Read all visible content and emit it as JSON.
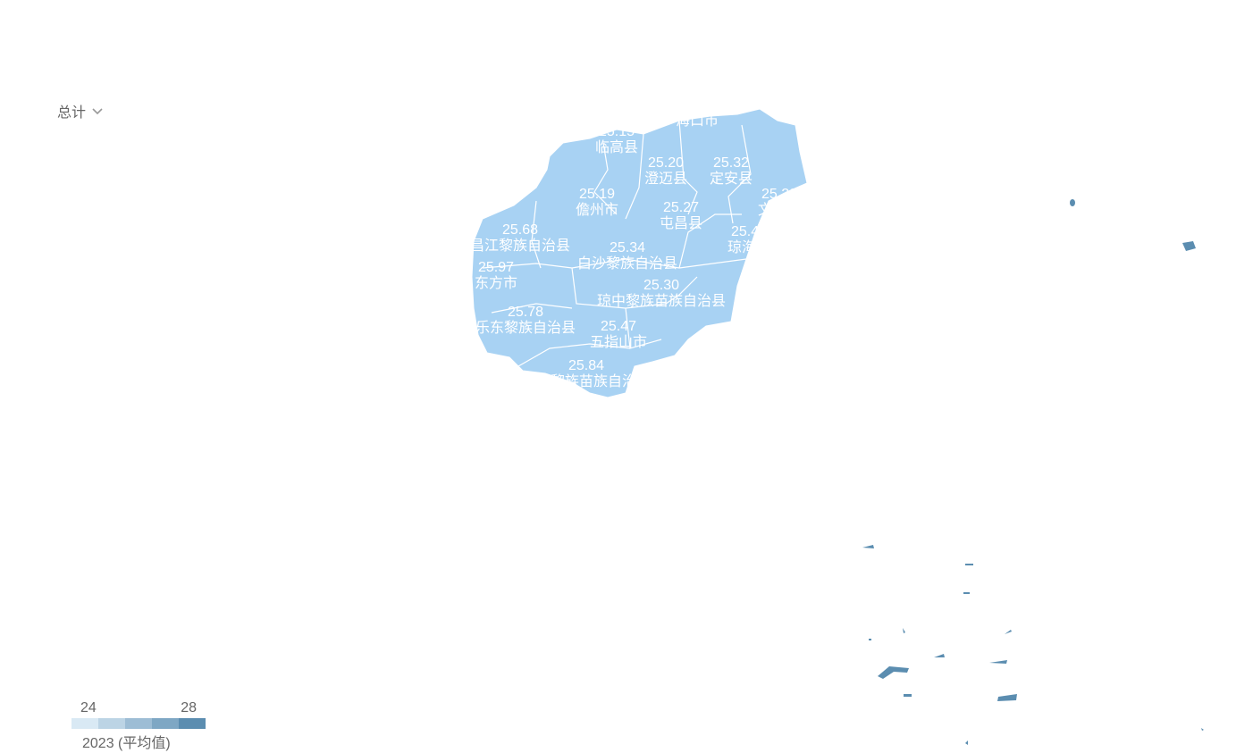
{
  "selector": {
    "label": "总计",
    "icon": "chevron-down-icon"
  },
  "map": {
    "fill_color": "#a8d2f3",
    "island_color": "#5b8db0",
    "regions": [
      {
        "name": "海口市",
        "value": ""
      },
      {
        "name": "临高县",
        "value": "25.15"
      },
      {
        "name": "澄迈县",
        "value": "25.20"
      },
      {
        "name": "定安县",
        "value": "25.32"
      },
      {
        "name": "文昌市",
        "value": "25.20"
      },
      {
        "name": "儋州市",
        "value": "25.19"
      },
      {
        "name": "屯昌县",
        "value": "25.27"
      },
      {
        "name": "琼海市",
        "value": "25.46"
      },
      {
        "name": "昌江黎族自治县",
        "value": "25.68"
      },
      {
        "name": "白沙黎族自治县",
        "value": "25.34"
      },
      {
        "name": "东方市",
        "value": "25.97"
      },
      {
        "name": "琼中黎族苗族自治县",
        "value": "25.30"
      },
      {
        "name": "万宁市",
        "value": "25.39"
      },
      {
        "name": "乐东黎族自治县",
        "value": "25.78"
      },
      {
        "name": "五指山市",
        "value": "25.47"
      },
      {
        "name": "保亭黎族苗族自治县",
        "value": "25.84"
      },
      {
        "name": "陵水黎族自治县",
        "value": ""
      },
      {
        "name": "三亚市",
        "value": "25.67"
      }
    ]
  },
  "legend": {
    "min": "24",
    "max": "28",
    "title": "2023 (平均值)",
    "colors": [
      "#d9e9f4",
      "#bcd4e5",
      "#9dbdd5",
      "#7ea7c4",
      "#5b8db0"
    ]
  }
}
